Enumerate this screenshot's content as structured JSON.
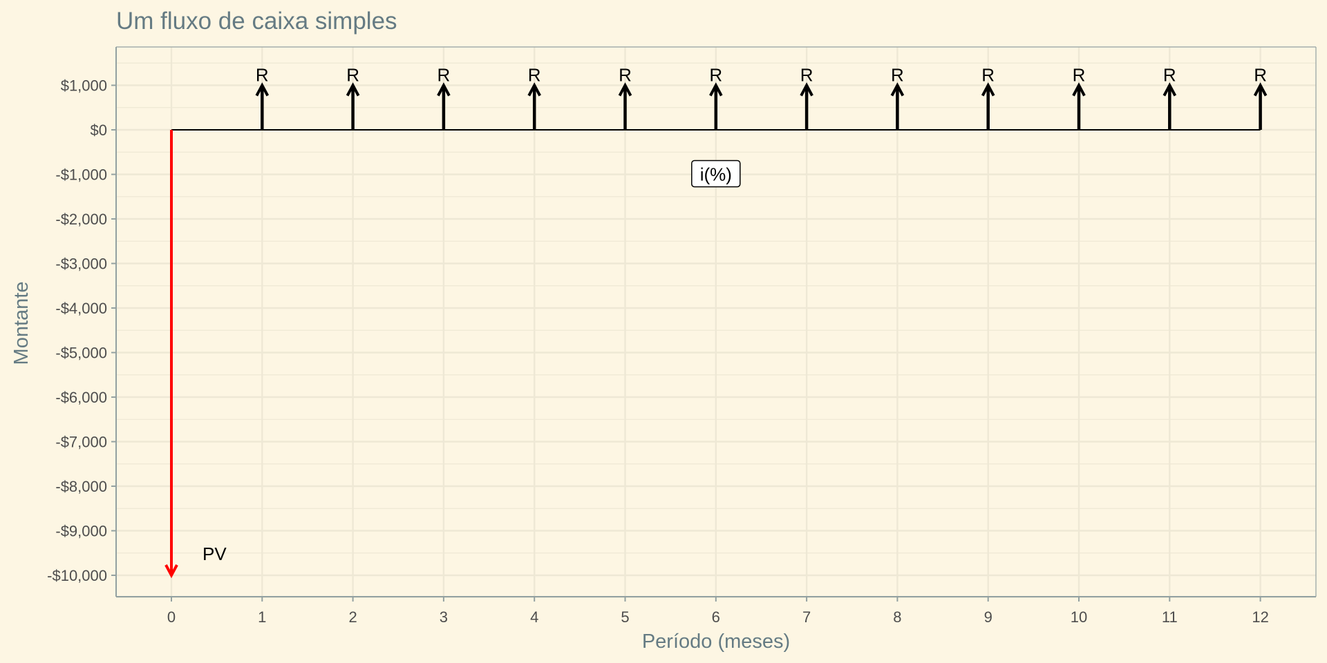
{
  "chart_data": {
    "type": "cashflow-diagram",
    "title": "Um fluxo de caixa simples",
    "xlabel": "Período (meses)",
    "ylabel": "Montante",
    "xlim": [
      -0.6,
      12.6
    ],
    "ylim": [
      -10500,
      1800
    ],
    "x_ticks": [
      0,
      1,
      2,
      3,
      4,
      5,
      6,
      7,
      8,
      9,
      10,
      11,
      12
    ],
    "x_tick_labels": [
      "0",
      "1",
      "2",
      "3",
      "4",
      "5",
      "6",
      "7",
      "8",
      "9",
      "10",
      "11",
      "12"
    ],
    "y_ticks": [
      1000,
      0,
      -1000,
      -2000,
      -3000,
      -4000,
      -5000,
      -6000,
      -7000,
      -8000,
      -9000,
      -10000
    ],
    "y_tick_labels": [
      "$1,000",
      "$0",
      "-$1,000",
      "-$2,000",
      "-$3,000",
      "-$4,000",
      "-$5,000",
      "-$6,000",
      "-$7,000",
      "-$8,000",
      "-$9,000",
      "-$10,000"
    ],
    "grid": true,
    "timeline": {
      "x_start": 0,
      "x_end": 12,
      "y": 0
    },
    "inflows": {
      "label": "R",
      "value": 1000,
      "periods": [
        1,
        2,
        3,
        4,
        5,
        6,
        7,
        8,
        9,
        10,
        11,
        12
      ]
    },
    "outflow": {
      "label": "PV",
      "period": 0,
      "value": -10000,
      "color": "#ff0000"
    },
    "rate_label": {
      "text": "i(%)",
      "x": 6,
      "y": -1000
    }
  },
  "colors": {
    "background": "#fdf6e3",
    "grid": "#eee8d5",
    "axis_line": "#93a1a1",
    "text_muted": "#657b83",
    "ticks": "#4d4d4d",
    "inflow": "#000000",
    "outflow": "#ff0000"
  }
}
